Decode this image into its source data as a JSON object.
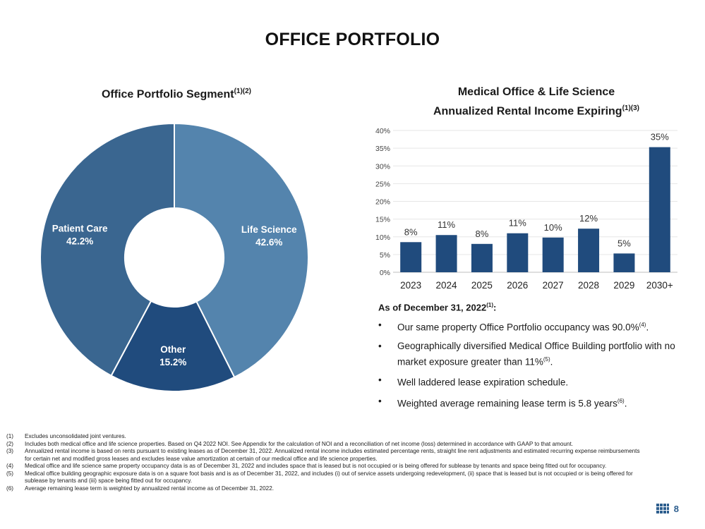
{
  "page": {
    "title": "OFFICE PORTFOLIO",
    "page_number": "8"
  },
  "donut": {
    "title": "Office Portfolio Segment",
    "title_sup": "(1)(2)"
  },
  "bar_chart": {
    "title_line1": "Medical Office & Life Science",
    "title_line2": "Annualized Rental Income Expiring",
    "title_sup": "(1)(3)"
  },
  "chart_data": [
    {
      "type": "pie",
      "subtype": "donut",
      "title": "Office Portfolio Segment",
      "slices": [
        {
          "label": "Life Science",
          "value": 42.6,
          "value_label": "42.6%",
          "color": "#5484ad"
        },
        {
          "label": "Other",
          "value": 15.2,
          "value_label": "15.2%",
          "color": "#204b7d"
        },
        {
          "label": "Patient Care",
          "value": 42.2,
          "value_label": "42.2%",
          "color": "#3a6690"
        }
      ]
    },
    {
      "type": "bar",
      "title": "Medical Office & Life Science Annualized Rental Income Expiring",
      "categories": [
        "2023",
        "2024",
        "2025",
        "2026",
        "2027",
        "2028",
        "2029",
        "2030+"
      ],
      "values": [
        8.5,
        10.5,
        8,
        11,
        9.8,
        12.3,
        5.3,
        35.3
      ],
      "value_labels": [
        "8%",
        "11%",
        "8%",
        "11%",
        "10%",
        "12%",
        "5%",
        "35%"
      ],
      "ylim": [
        0,
        40
      ],
      "yticks": [
        "0%",
        "5%",
        "10%",
        "15%",
        "20%",
        "25%",
        "30%",
        "35%",
        "40%"
      ],
      "color": "#204b7d",
      "grid": true
    }
  ],
  "summary": {
    "heading": "As of December 31, 2022",
    "heading_sup": "(1)",
    "heading_colon": ":",
    "bullet_char": "•",
    "bullets": [
      {
        "text": "Our same property Office Portfolio occupancy was 90.0%",
        "sup": "(4)",
        "tail": "."
      },
      {
        "text": "Geographically diversified Medical Office Building portfolio with no market exposure greater than 11%",
        "sup": "(5)",
        "tail": "."
      },
      {
        "text": "Well laddered lease expiration schedule.",
        "sup": "",
        "tail": ""
      },
      {
        "text": "Weighted average remaining lease term is 5.8 years",
        "sup": "(6)",
        "tail": "."
      }
    ]
  },
  "footnotes": [
    {
      "num": "(1)",
      "text": "Excludes unconsolidated joint ventures."
    },
    {
      "num": "(2)",
      "text": "Includes both medical office and life science properties. Based on Q4 2022 NOI. See Appendix for the calculation of NOI and a reconciliation of net income (loss) determined in accordance with GAAP to that amount."
    },
    {
      "num": "(3)",
      "text": "Annualized rental income is based on rents pursuant to existing leases as of December 31, 2022. Annualized rental income includes estimated percentage rents, straight line rent adjustments and estimated recurring expense reimbursements for certain net and modified gross leases and excludes lease value amortization at certain of our medical office and life science properties."
    },
    {
      "num": "(4)",
      "text": "Medical office and life science same property occupancy data is as of December 31, 2022 and includes space that is leased but is not occupied or is being offered for sublease by tenants and space being fitted out for occupancy."
    },
    {
      "num": "(5)",
      "text": "Medical office building geographic exposure data is on a square foot basis and is as of December 31, 2022, and includes (i) out of service assets undergoing redevelopment, (ii) space that is leased but is not occupied or is being offered for sublease by tenants and (iii) space being fitted out for occupancy."
    },
    {
      "num": "(6)",
      "text": "Average remaining lease term is weighted by annualized rental income as of December 31, 2022."
    }
  ]
}
